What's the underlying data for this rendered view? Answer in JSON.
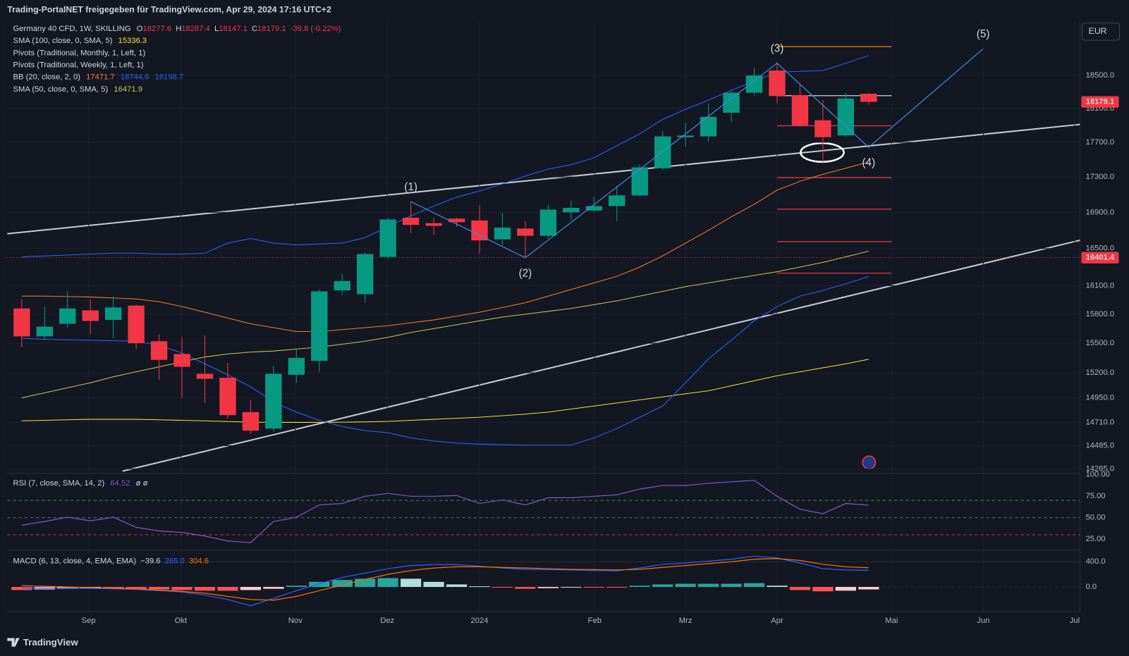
{
  "header": {
    "title": "Trading-PortalNET freigegeben für TradingView.com, Apr 29, 2024 17:16 UTC+2",
    "currency": "EUR",
    "logo": "TradingView"
  },
  "chart_data": {
    "type": "candlestick",
    "symbol": "Germany 40 CFD, 1W, SKILLING",
    "ohlc_labels": [
      "O",
      "H",
      "L",
      "C"
    ],
    "change_label": "-39.8 (-0.22%)",
    "log_scale": true,
    "grid": true,
    "up_color": "#089981",
    "down_color": "#f23645",
    "xlim": [
      -0.63,
      46.23
    ],
    "xticks": [
      {
        "value": 2.92,
        "label": "Sep"
      },
      {
        "value": 6.95,
        "label": "Okt"
      },
      {
        "value": 11.95,
        "label": "Nov"
      },
      {
        "value": 15.97,
        "label": "Dez"
      },
      {
        "value": 20,
        "label": "2024"
      },
      {
        "value": 25.03,
        "label": "Feb"
      },
      {
        "value": 29,
        "label": "Mrz"
      },
      {
        "value": 33,
        "label": "Apr"
      },
      {
        "value": 38,
        "label": "Mai"
      },
      {
        "value": 42.01,
        "label": "Jun"
      },
      {
        "value": 46,
        "label": "Jul"
      }
    ],
    "ylim": [
      14230,
      19170
    ],
    "yticks": [
      {
        "value": 18500,
        "label": "18500.0"
      },
      {
        "value": 18100,
        "label": "18100.0"
      },
      {
        "value": 17700,
        "label": "17700.0"
      },
      {
        "value": 17300,
        "label": "17300.0"
      },
      {
        "value": 16900,
        "label": "16900.0"
      },
      {
        "value": 16500,
        "label": "16500.0"
      },
      {
        "value": 16100,
        "label": "16100.0"
      },
      {
        "value": 15800,
        "label": "15800.0"
      },
      {
        "value": 15500,
        "label": "15500.0"
      },
      {
        "value": 15200,
        "label": "15200.0"
      },
      {
        "value": 14950,
        "label": "14950.0"
      },
      {
        "value": 14710,
        "label": "14710.0"
      },
      {
        "value": 14485,
        "label": "14485.0"
      },
      {
        "value": 14265,
        "label": "14265.0"
      }
    ],
    "open": [
      15860,
      15570,
      15700,
      15840,
      15740,
      15890,
      15520,
      15390,
      15190,
      15150,
      14810,
      14650,
      15180,
      15320,
      16050,
      16010,
      16410,
      16840,
      16780,
      16830,
      16810,
      16600,
      16720,
      16640,
      16900,
      16920,
      16970,
      17090,
      17400,
      17760,
      17770,
      18050,
      18290,
      18560,
      18260,
      17960,
      17780,
      18277.6
    ],
    "high": [
      15960,
      15880,
      16040,
      15960,
      15990,
      15900,
      15590,
      15560,
      15580,
      15300,
      14930,
      15270,
      15430,
      16060,
      16230,
      16460,
      16840,
      17020,
      16840,
      16840,
      16980,
      16890,
      16800,
      16990,
      17030,
      17080,
      17200,
      17440,
      17830,
      17930,
      18160,
      18330,
      18590,
      18650,
      18390,
      18200,
      18290,
      18287.4
    ],
    "low": [
      15460,
      15530,
      15660,
      15590,
      15550,
      15440,
      15130,
      14950,
      14900,
      14750,
      14600,
      14620,
      15100,
      15210,
      16000,
      15920,
      16390,
      16670,
      16650,
      16740,
      16440,
      16540,
      16400,
      16610,
      16820,
      16900,
      16800,
      17080,
      17380,
      17650,
      17700,
      17940,
      18260,
      18160,
      17880,
      17450,
      17760,
      18147.1
    ],
    "close": [
      15570,
      15670,
      15860,
      15730,
      15870,
      15500,
      15330,
      15260,
      15140,
      14780,
      14630,
      15190,
      15350,
      16040,
      16150,
      16440,
      16820,
      16760,
      16750,
      16790,
      16590,
      16730,
      16640,
      16930,
      16950,
      16970,
      17090,
      17410,
      17770,
      17780,
      18000,
      18290,
      18500,
      18250,
      17900,
      17760,
      18220,
      18179.1
    ],
    "marker_price": 16401.4,
    "marker_color": "#f23645",
    "indicators": [
      {
        "name": "SMA (100, close, 0, SMA, 5)",
        "series": [
          {
            "color": "#f7e03a",
            "values": [
              14725,
              14730,
              14735,
              14740,
              14740,
              14740,
              14735,
              14730,
              14725,
              14718,
              14712,
              14710,
              14710,
              14710,
              14712,
              14715,
              14720,
              14730,
              14740,
              14750,
              14760,
              14775,
              14790,
              14810,
              14840,
              14870,
              14900,
              14930,
              14960,
              14990,
              15020,
              15070,
              15120,
              15170,
              15210,
              15250,
              15290,
              15336.3
            ]
          }
        ]
      },
      {
        "name": "Pivots (Traditional, Monthly, 1, Left, 1)"
      },
      {
        "name": "Pivots (Traditional, Weekly, 1, Left, 1)",
        "levels": [
          18855,
          18254,
          17895,
          17292,
          16935,
          16576,
          16234
        ],
        "colors": [
          "#f57c00",
          "#d1d4dc",
          "#f23645",
          "#f23645",
          "#f23645",
          "#f23645",
          "#f23645"
        ]
      },
      {
        "name": "BB (20, close, 2, 0)",
        "series": [
          {
            "color": "#f57c28",
            "values": [
              15990,
              15990,
              15985,
              15980,
              15970,
              15960,
              15930,
              15880,
              15820,
              15760,
              15700,
              15660,
              15620,
              15620,
              15640,
              15660,
              15680,
              15710,
              15740,
              15780,
              15820,
              15870,
              15920,
              15990,
              16060,
              16130,
              16200,
              16300,
              16420,
              16560,
              16700,
              16850,
              16990,
              17150,
              17250,
              17330,
              17400,
              17471.7
            ]
          },
          {
            "color": "#2962ff",
            "values": [
              16410,
              16420,
              16430,
              16440,
              16450,
              16450,
              16440,
              16440,
              16450,
              16560,
              16610,
              16560,
              16540,
              16550,
              16560,
              16620,
              16740,
              16860,
              16970,
              17070,
              17140,
              17220,
              17310,
              17390,
              17440,
              17520,
              17660,
              17800,
              17970,
              18090,
              18200,
              18320,
              18430,
              18540,
              18550,
              18560,
              18650,
              18744.6
            ]
          },
          {
            "color": "#2962ff",
            "values": [
              15550,
              15540,
              15535,
              15530,
              15525,
              15520,
              15480,
              15400,
              15290,
              15180,
              15060,
              14910,
              14810,
              14730,
              14670,
              14630,
              14610,
              14560,
              14530,
              14510,
              14500,
              14495,
              14490,
              14490,
              14490,
              14560,
              14650,
              14760,
              14870,
              15100,
              15340,
              15530,
              15730,
              15880,
              15990,
              16050,
              16120,
              16198.7
            ]
          }
        ]
      },
      {
        "name": "SMA (50, close, 0, SMA, 5)",
        "series": [
          {
            "color": "#c8c85a",
            "values": [
              14950,
              15000,
              15050,
              15100,
              15160,
              15210,
              15260,
              15310,
              15360,
              15390,
              15410,
              15420,
              15440,
              15460,
              15490,
              15520,
              15560,
              15610,
              15650,
              15690,
              15730,
              15770,
              15800,
              15830,
              15860,
              15900,
              15940,
              15990,
              16040,
              16090,
              16130,
              16170,
              16210,
              16250,
              16300,
              16350,
              16410,
              16471.9
            ]
          }
        ]
      }
    ],
    "waves": {
      "labels": [
        "(1)",
        "(2)",
        "(3)",
        "(4)",
        "(5)"
      ],
      "x": [
        17,
        22,
        33,
        37,
        42
      ],
      "prices": [
        17020,
        16400,
        18650,
        17642,
        18828
      ],
      "color": "#3d8bd9"
    },
    "rsi": {
      "name": "RSI (7, close, SMA, 14, 2)",
      "extra_label": "ø ø",
      "color": "#7e57c2",
      "values": [
        41.2,
        45.5,
        50.5,
        46.3,
        50.5,
        38.7,
        34.5,
        32.8,
        28.6,
        22.7,
        21,
        45.5,
        50.5,
        64.8,
        66.5,
        74.9,
        78.3,
        74.9,
        74.9,
        75.8,
        66.5,
        70.7,
        64.8,
        73.2,
        73.2,
        74.9,
        76.6,
        83.3,
        87.5,
        87.5,
        90,
        91.8,
        93.4,
        74.9,
        59.8,
        54.7,
        66.5,
        64.52
      ],
      "ylim": [
        12,
        100
      ],
      "yticks": [
        {
          "value": 100,
          "label": "100.00"
        },
        {
          "value": 75,
          "label": "75.00"
        },
        {
          "value": 50,
          "label": "50.00"
        },
        {
          "value": 25,
          "label": "25.00"
        }
      ],
      "bands": [
        70,
        50,
        30
      ],
      "band_colors": [
        "#4caf50",
        "#787b86",
        "#f23645"
      ]
    },
    "macd": {
      "name": "MACD (6, 13, close, 4, EMA, EMA)",
      "histogram": [
        -50,
        -40,
        -30,
        -20,
        -20,
        -30,
        -40,
        -50,
        -60,
        -60,
        -50,
        -30,
        20,
        80,
        110,
        130,
        140,
        130,
        80,
        40,
        10,
        -10,
        -30,
        -20,
        -10,
        -10,
        -10,
        20,
        40,
        50,
        50,
        50,
        60,
        20,
        -50,
        -70,
        -60,
        -39.6
      ],
      "value_labels": [
        "−39.6",
        "265.0",
        "304.6"
      ],
      "label_colors": [
        "#d1d4dc",
        "#2962ff",
        "#ff6d00"
      ],
      "hist_colors": [
        "#26a69a",
        "#b2dfdb",
        "#ff5252",
        "#ffcdd2"
      ],
      "macd": {
        "color": "#2962ff",
        "values": [
          -20,
          -20,
          -20,
          -25,
          -30,
          -40,
          -60,
          -80,
          -130,
          -200,
          -300,
          -180,
          -60,
          50,
          150,
          220,
          290,
          340,
          355,
          355,
          330,
          300,
          280,
          275,
          270,
          260,
          255,
          300,
          360,
          380,
          410,
          440,
          490,
          460,
          380,
          290,
          270,
          265
        ]
      },
      "signal": {
        "color": "#ff6d00",
        "values": [
          20,
          10,
          0,
          -10,
          -20,
          -30,
          -50,
          -70,
          -100,
          -150,
          -200,
          -210,
          -150,
          -60,
          30,
          120,
          200,
          260,
          300,
          320,
          320,
          310,
          300,
          290,
          280,
          275,
          270,
          280,
          310,
          340,
          370,
          400,
          440,
          450,
          420,
          360,
          320,
          304.6
        ]
      },
      "ylim": [
        -389,
        571
      ],
      "yticks": [
        {
          "value": 400,
          "label": "400.0"
        },
        {
          "value": 0,
          "label": "0.0"
        }
      ]
    }
  }
}
